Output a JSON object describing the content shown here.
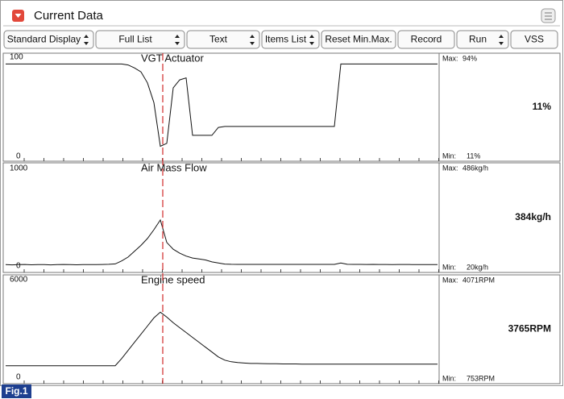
{
  "header": {
    "title": "Current Data"
  },
  "toolbar": [
    {
      "label": "Standard Display",
      "dropdown": true
    },
    {
      "label": "Full List",
      "dropdown": true
    },
    {
      "label": "Text",
      "dropdown": true
    },
    {
      "label": "Items List",
      "dropdown": true
    },
    {
      "label": "Reset Min.Max.",
      "dropdown": false
    },
    {
      "label": "Record",
      "dropdown": false
    },
    {
      "label": "Run",
      "dropdown": true
    },
    {
      "label": "VSS",
      "dropdown": false
    }
  ],
  "panels": [
    {
      "name": "VGT Actuator",
      "ymax": 100,
      "ymin": 0,
      "max_label": "Max:",
      "max_value": "94%",
      "current": "11%",
      "min_label": "Min:",
      "min_value": "11%",
      "values": [
        94,
        94,
        94,
        94,
        94,
        94,
        94,
        94,
        94,
        94,
        94,
        94,
        94,
        94,
        94,
        94,
        94,
        94,
        94,
        93,
        90,
        86,
        75,
        55,
        11,
        14,
        70,
        78,
        80,
        22,
        22,
        22,
        22,
        30,
        31,
        31,
        31,
        31,
        31,
        31,
        31,
        31,
        31,
        31,
        31,
        31,
        31,
        31,
        31,
        31,
        31,
        31,
        94,
        94,
        94,
        94,
        94,
        94,
        94,
        94,
        94,
        94,
        94,
        94,
        94,
        94,
        94,
        94
      ]
    },
    {
      "name": "Air Mass Flow",
      "ymax": 1000,
      "ymin": 0,
      "max_label": "Max:",
      "max_value": "486kg/h",
      "current": "384kg/h",
      "min_label": "Min:",
      "min_value": "20kg/h",
      "values": [
        22,
        20,
        22,
        24,
        21,
        23,
        22,
        20,
        22,
        24,
        23,
        21,
        22,
        23,
        22,
        24,
        26,
        30,
        60,
        100,
        160,
        220,
        290,
        380,
        480,
        250,
        180,
        140,
        110,
        90,
        80,
        70,
        50,
        40,
        28,
        26,
        25,
        25,
        25,
        25,
        25,
        25,
        25,
        25,
        25,
        25,
        25,
        25,
        25,
        25,
        25,
        25,
        40,
        26,
        25,
        25,
        24,
        25,
        24,
        24,
        23,
        24,
        24,
        23,
        23,
        22,
        22,
        22
      ]
    },
    {
      "name": "Engine speed",
      "ymax": 6000,
      "ymin": 0,
      "max_label": "Max:",
      "max_value": "4071RPM",
      "current": "3765RPM",
      "min_label": "Min:",
      "min_value": "753RPM",
      "values": [
        760,
        760,
        760,
        760,
        760,
        760,
        760,
        760,
        760,
        760,
        760,
        760,
        760,
        760,
        760,
        760,
        760,
        760,
        1200,
        1700,
        2200,
        2700,
        3200,
        3700,
        4050,
        3750,
        3400,
        3100,
        2800,
        2500,
        2200,
        1900,
        1600,
        1300,
        1100,
        1000,
        950,
        920,
        900,
        900,
        890,
        880,
        880,
        870,
        870,
        870,
        860,
        860,
        860,
        860,
        860,
        860,
        860,
        860,
        860,
        860,
        860,
        860,
        860,
        860,
        860,
        860,
        860,
        860,
        860,
        860,
        860,
        860
      ]
    }
  ],
  "figure_label": "Fig.1"
}
